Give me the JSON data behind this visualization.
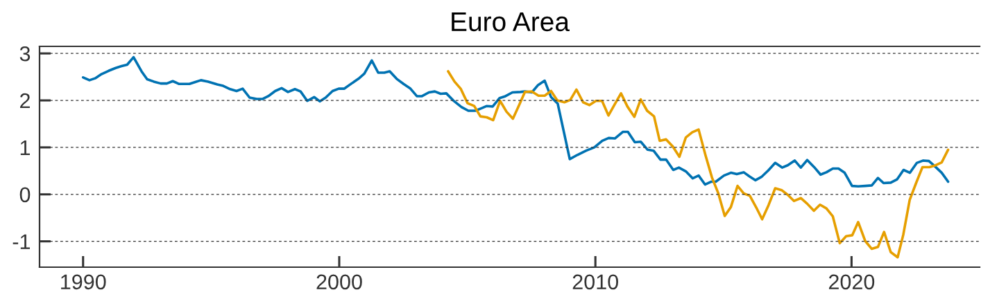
{
  "chart_data": {
    "type": "line",
    "title": "Euro Area",
    "xlim": [
      1988.3,
      2025
    ],
    "xticks": [
      1990,
      2000,
      2010,
      2020
    ],
    "ylim": [
      -1.55,
      3.15
    ],
    "yticks": [
      -1,
      0,
      1,
      2,
      3
    ],
    "grid": "y",
    "series": [
      {
        "color": "#0072b2",
        "x": [
          1990.0,
          1990.25,
          1990.47,
          1990.72,
          1991.0,
          1991.27,
          1991.5,
          1991.72,
          1991.97,
          1992.28,
          1992.5,
          1992.76,
          1993.03,
          1993.27,
          1993.5,
          1993.75,
          1994.15,
          1994.38,
          1994.6,
          1994.88,
          1995.24,
          1995.47,
          1995.74,
          1995.99,
          1996.23,
          1996.5,
          1996.78,
          1997.0,
          1997.23,
          1997.5,
          1997.75,
          1998.0,
          1998.27,
          1998.49,
          1998.75,
          1999.02,
          1999.24,
          1999.47,
          1999.74,
          1999.98,
          2000.2,
          2000.48,
          2000.75,
          2000.98,
          2001.27,
          2001.52,
          2001.76,
          2001.97,
          2002.24,
          2002.51,
          2002.78,
          2003.03,
          2003.23,
          2003.5,
          2003.73,
          2003.96,
          2004.18,
          2004.45,
          2004.77,
          2005.04,
          2005.31,
          2005.54,
          2005.76,
          2005.99,
          2006.26,
          2006.49,
          2006.76,
          2007.07,
          2007.25,
          2007.52,
          2007.75,
          2008.02,
          2008.27,
          2008.53,
          2009.0,
          2009.3,
          2009.64,
          2009.96,
          2010.27,
          2010.52,
          2010.76,
          2011.07,
          2011.27,
          2011.54,
          2011.77,
          2012.04,
          2012.27,
          2012.54,
          2012.76,
          2013.04,
          2013.26,
          2013.53,
          2013.8,
          2014.03,
          2014.28,
          2014.53,
          2014.7,
          2015.02,
          2015.29,
          2015.52,
          2015.79,
          2016.02,
          2016.25,
          2016.48,
          2016.75,
          2017.02,
          2017.29,
          2017.51,
          2017.78,
          2018.02,
          2018.27,
          2018.54,
          2018.79,
          2019.02,
          2019.27,
          2019.49,
          2019.73,
          2020.02,
          2020.26,
          2020.53,
          2020.79,
          2021.03,
          2021.25,
          2021.53,
          2021.78,
          2022.03,
          2022.28,
          2022.55,
          2022.8,
          2023.02,
          2023.25,
          2023.52,
          2023.77
        ],
        "values": [
          2.49,
          2.43,
          2.47,
          2.56,
          2.63,
          2.69,
          2.73,
          2.76,
          2.92,
          2.62,
          2.45,
          2.4,
          2.36,
          2.36,
          2.41,
          2.35,
          2.35,
          2.39,
          2.43,
          2.4,
          2.34,
          2.31,
          2.24,
          2.2,
          2.25,
          2.06,
          2.03,
          2.03,
          2.09,
          2.2,
          2.26,
          2.18,
          2.24,
          2.19,
          1.99,
          2.07,
          1.98,
          2.06,
          2.2,
          2.25,
          2.25,
          2.36,
          2.46,
          2.57,
          2.85,
          2.59,
          2.59,
          2.62,
          2.46,
          2.35,
          2.25,
          2.09,
          2.09,
          2.17,
          2.19,
          2.14,
          2.15,
          2.0,
          1.86,
          1.78,
          1.78,
          1.83,
          1.88,
          1.87,
          2.05,
          2.09,
          2.17,
          2.18,
          2.19,
          2.17,
          2.32,
          2.42,
          2.07,
          1.93,
          0.75,
          0.84,
          0.93,
          1.0,
          1.14,
          1.2,
          1.19,
          1.33,
          1.33,
          1.11,
          1.12,
          0.95,
          0.93,
          0.74,
          0.74,
          0.52,
          0.57,
          0.49,
          0.34,
          0.4,
          0.21,
          0.27,
          0.27,
          0.4,
          0.46,
          0.43,
          0.47,
          0.38,
          0.3,
          0.37,
          0.51,
          0.67,
          0.57,
          0.62,
          0.72,
          0.57,
          0.73,
          0.58,
          0.42,
          0.47,
          0.55,
          0.55,
          0.46,
          0.18,
          0.17,
          0.18,
          0.19,
          0.35,
          0.24,
          0.25,
          0.32,
          0.52,
          0.46,
          0.67,
          0.72,
          0.71,
          0.6,
          0.46,
          0.27
        ]
      },
      {
        "color": "#e69f00",
        "x": [
          2004.25,
          2004.5,
          2004.74,
          2005.01,
          2005.27,
          2005.51,
          2005.76,
          2006.01,
          2006.28,
          2006.53,
          2006.78,
          2007.03,
          2007.25,
          2007.52,
          2007.78,
          2008.02,
          2008.27,
          2008.51,
          2008.79,
          2009.02,
          2009.26,
          2009.52,
          2009.77,
          2010.02,
          2010.26,
          2010.51,
          2010.76,
          2011.0,
          2011.25,
          2011.52,
          2011.77,
          2012.02,
          2012.29,
          2012.51,
          2012.76,
          2013.02,
          2013.28,
          2013.53,
          2013.78,
          2014.03,
          2014.3,
          2014.55,
          2014.8,
          2015.05,
          2015.29,
          2015.55,
          2015.79,
          2016.03,
          2016.28,
          2016.51,
          2016.76,
          2017.02,
          2017.27,
          2017.51,
          2017.75,
          2018.02,
          2018.27,
          2018.53,
          2018.77,
          2019.02,
          2019.27,
          2019.54,
          2019.79,
          2020.03,
          2020.26,
          2020.53,
          2020.79,
          2021.03,
          2021.27,
          2021.53,
          2021.8,
          2022.02,
          2022.27,
          2022.52,
          2022.77,
          2023.04,
          2023.29,
          2023.52,
          2023.77
        ],
        "values": [
          2.62,
          2.4,
          2.25,
          1.94,
          1.88,
          1.66,
          1.64,
          1.58,
          1.99,
          1.76,
          1.61,
          1.91,
          2.18,
          2.19,
          2.1,
          2.1,
          2.2,
          2.0,
          1.96,
          2.01,
          2.23,
          1.96,
          1.9,
          1.99,
          1.99,
          1.68,
          1.92,
          2.15,
          1.87,
          1.65,
          2.02,
          1.78,
          1.66,
          1.14,
          1.17,
          1.02,
          0.8,
          1.21,
          1.32,
          1.38,
          0.83,
          0.36,
          0.02,
          -0.46,
          -0.27,
          0.18,
          0.02,
          -0.03,
          -0.28,
          -0.53,
          -0.23,
          0.13,
          0.09,
          -0.01,
          -0.14,
          -0.08,
          -0.2,
          -0.35,
          -0.22,
          -0.3,
          -0.47,
          -1.04,
          -0.89,
          -0.87,
          -0.59,
          -0.99,
          -1.16,
          -1.12,
          -0.8,
          -1.23,
          -1.34,
          -0.86,
          -0.12,
          0.24,
          0.58,
          0.58,
          0.62,
          0.68,
          0.95
        ]
      }
    ]
  }
}
